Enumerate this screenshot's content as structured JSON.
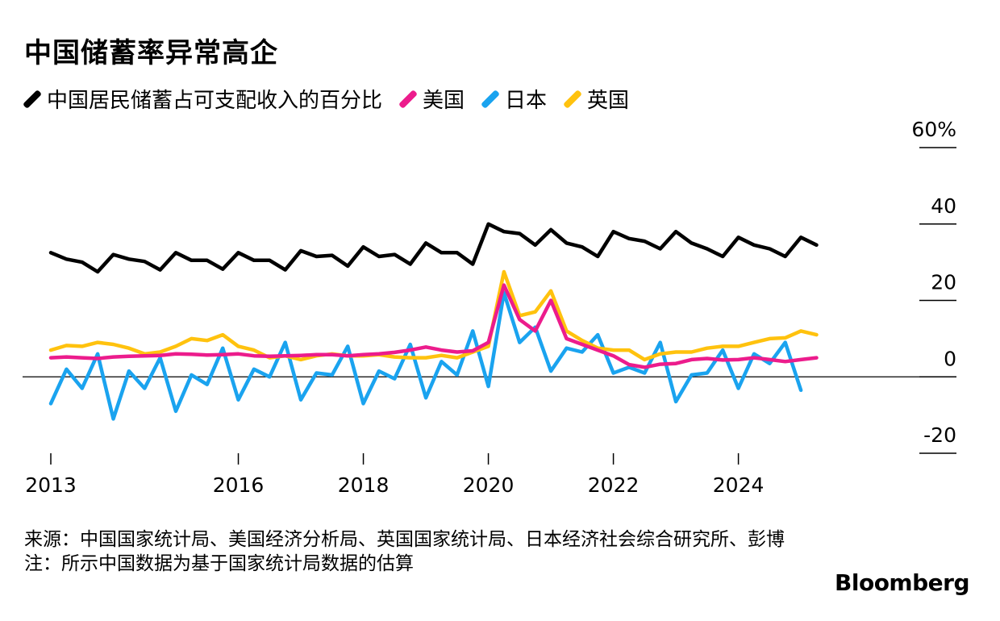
{
  "title": "中国储蓄率异常高企",
  "legend": [
    {
      "label": "中国居民储蓄占可支配收入的百分比",
      "color": "#000000"
    },
    {
      "label": "美国",
      "color": "#ec1c8c"
    },
    {
      "label": "日本",
      "color": "#1aa3ef"
    },
    {
      "label": "英国",
      "color": "#ffc20e"
    }
  ],
  "footer": {
    "source": "来源：中国国家统计局、美国经济分析局、英国国家统计局、日本经济社会综合研究所、彭博",
    "note": "注：所示中国数据为基于国家统计局数据的估算"
  },
  "brand": "Bloomberg",
  "chart_data": {
    "type": "line",
    "xlim": [
      2013.0,
      2026.25
    ],
    "ylim": [
      -20,
      60
    ],
    "yticks": [
      60,
      40,
      20,
      0,
      -20
    ],
    "ytick_labels": [
      "60%",
      "40",
      "20",
      "0",
      "-20"
    ],
    "xticks": [
      2013,
      2016,
      2018,
      2020,
      2022,
      2024
    ],
    "xtick_labels": [
      "2013",
      "2016",
      "2018",
      "2020",
      "2022",
      "2024"
    ],
    "series": [
      {
        "name": "中国居民储蓄占可支配收入的百分比",
        "color": "#000000",
        "x_start": 2013.0,
        "step": 0.25,
        "values": [
          32.5,
          30.8,
          30.0,
          27.5,
          32.0,
          30.8,
          30.2,
          28.0,
          32.5,
          30.5,
          30.5,
          28.2,
          32.5,
          30.5,
          30.5,
          28.0,
          33.0,
          31.5,
          31.8,
          29.0,
          34.0,
          31.5,
          32.0,
          29.5,
          35.0,
          32.5,
          32.5,
          29.5,
          40.0,
          38.0,
          37.5,
          34.5,
          38.5,
          35.0,
          34.0,
          31.5,
          38.0,
          36.2,
          35.5,
          33.5,
          38.0,
          35.0,
          33.5,
          31.5,
          36.5,
          34.5,
          33.5,
          31.5,
          36.5,
          34.5
        ]
      },
      {
        "name": "美国",
        "color": "#ec1c8c",
        "x_start": 2013.0,
        "step": 0.25,
        "values": [
          5.0,
          5.2,
          5.0,
          4.8,
          5.2,
          5.4,
          5.5,
          5.6,
          6.0,
          5.9,
          5.7,
          5.8,
          6.0,
          5.5,
          5.4,
          5.5,
          5.6,
          5.8,
          5.8,
          5.5,
          5.8,
          6.0,
          6.4,
          7.0,
          7.8,
          7.0,
          6.5,
          6.8,
          9.0,
          24.0,
          15.0,
          12.0,
          20.0,
          10.0,
          8.5,
          7.0,
          5.5,
          3.2,
          2.5,
          3.3,
          3.5,
          4.5,
          4.8,
          4.4,
          4.5,
          5.0,
          4.5,
          4.0,
          4.5,
          5.0
        ]
      },
      {
        "name": "日本",
        "color": "#1aa3ef",
        "x_start": 2013.0,
        "step": 0.25,
        "values": [
          -7.0,
          2.0,
          -3.0,
          6.0,
          -11.0,
          1.5,
          -3.0,
          5.0,
          -9.0,
          0.5,
          -2.0,
          7.5,
          -6.0,
          2.0,
          0.0,
          9.0,
          -6.0,
          1.0,
          0.5,
          8.0,
          -7.0,
          1.5,
          -0.5,
          8.5,
          -5.5,
          4.0,
          0.5,
          12.0,
          -2.5,
          22.0,
          9.0,
          13.0,
          1.5,
          7.5,
          6.5,
          11.0,
          1.0,
          2.5,
          1.0,
          9.0,
          -6.5,
          0.5,
          1.0,
          7.0,
          -3.0,
          6.0,
          3.5,
          9.0,
          -3.5
        ]
      },
      {
        "name": "英国",
        "color": "#ffc20e",
        "x_start": 2013.0,
        "step": 0.25,
        "values": [
          7.0,
          8.2,
          8.0,
          9.0,
          8.5,
          7.5,
          6.0,
          6.5,
          8.0,
          10.0,
          9.5,
          11.0,
          8.0,
          7.0,
          5.0,
          5.5,
          4.5,
          5.5,
          6.0,
          5.5,
          5.5,
          5.8,
          5.2,
          5.0,
          5.0,
          5.6,
          5.0,
          6.5,
          8.0,
          27.5,
          16.0,
          17.0,
          22.5,
          12.0,
          9.5,
          7.5,
          7.0,
          7.0,
          4.5,
          6.0,
          6.5,
          6.5,
          7.5,
          8.0,
          8.0,
          9.0,
          10.0,
          10.2,
          12.0,
          11.0
        ]
      }
    ]
  }
}
